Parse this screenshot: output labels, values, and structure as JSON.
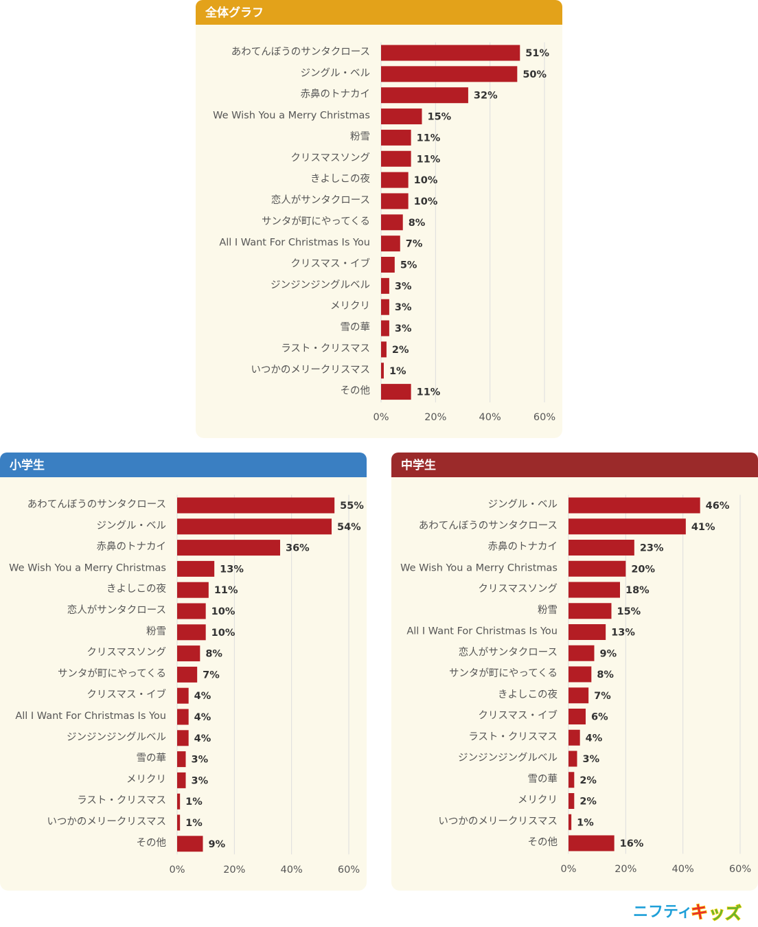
{
  "brand": {
    "text_part1": "ニフティ",
    "text_part2": "キ",
    "text_part3": "ッズ"
  },
  "colors": {
    "bar": "#b41d24",
    "header_overall": "#e3a21a",
    "header_elementary": "#3a7fc2",
    "header_middle": "#9b2a2a",
    "panel_bg": "#fcf9ea"
  },
  "chart_data": [
    {
      "type": "bar",
      "orientation": "horizontal",
      "title": "全体グラフ",
      "categories": [
        "あわてんぼうのサンタクロース",
        "ジングル・ベル",
        "赤鼻のトナカイ",
        "We Wish You a Merry Christmas",
        "粉雪",
        "クリスマスソング",
        "きよしこの夜",
        "恋人がサンタクロース",
        "サンタが町にやってくる",
        "All I Want For Christmas Is You",
        "クリスマス・イブ",
        "ジンジンジングルベル",
        "メリクリ",
        "雪の華",
        "ラスト・クリスマス",
        "いつかのメリークリスマス",
        "その他"
      ],
      "values": [
        51,
        50,
        32,
        15,
        11,
        11,
        10,
        10,
        8,
        7,
        5,
        3,
        3,
        3,
        2,
        1,
        11
      ],
      "value_labels": [
        "51%",
        "50%",
        "32%",
        "15%",
        "11%",
        "11%",
        "10%",
        "10%",
        "8%",
        "7%",
        "5%",
        "3%",
        "3%",
        "3%",
        "2%",
        "1%",
        "11%"
      ],
      "xlim": [
        0,
        60
      ],
      "ticks": [
        0,
        20,
        40,
        60
      ],
      "tick_labels": [
        "0%",
        "20%",
        "40%",
        "60%"
      ],
      "grid": true
    },
    {
      "type": "bar",
      "orientation": "horizontal",
      "title": "小学生",
      "categories": [
        "あわてんぼうのサンタクロース",
        "ジングル・ベル",
        "赤鼻のトナカイ",
        "We Wish You a Merry Christmas",
        "きよしこの夜",
        "恋人がサンタクロース",
        "粉雪",
        "クリスマスソング",
        "サンタが町にやってくる",
        "クリスマス・イブ",
        "All I Want For Christmas Is You",
        "ジンジンジングルベル",
        "雪の華",
        "メリクリ",
        "ラスト・クリスマス",
        "いつかのメリークリスマス",
        "その他"
      ],
      "values": [
        55,
        54,
        36,
        13,
        11,
        10,
        10,
        8,
        7,
        4,
        4,
        4,
        3,
        3,
        1,
        1,
        9
      ],
      "value_labels": [
        "55%",
        "54%",
        "36%",
        "13%",
        "11%",
        "10%",
        "10%",
        "8%",
        "7%",
        "4%",
        "4%",
        "4%",
        "3%",
        "3%",
        "1%",
        "1%",
        "9%"
      ],
      "xlim": [
        0,
        60
      ],
      "ticks": [
        0,
        20,
        40,
        60
      ],
      "tick_labels": [
        "0%",
        "20%",
        "40%",
        "60%"
      ],
      "grid": true
    },
    {
      "type": "bar",
      "orientation": "horizontal",
      "title": "中学生",
      "categories": [
        "ジングル・ベル",
        "あわてんぼうのサンタクロース",
        "赤鼻のトナカイ",
        "We Wish You a Merry Christmas",
        "クリスマスソング",
        "粉雪",
        "All I Want For Christmas Is You",
        "恋人がサンタクロース",
        "サンタが町にやってくる",
        "きよしこの夜",
        "クリスマス・イブ",
        "ラスト・クリスマス",
        "ジンジンジングルベル",
        "雪の華",
        "メリクリ",
        "いつかのメリークリスマス",
        "その他"
      ],
      "values": [
        46,
        41,
        23,
        20,
        18,
        15,
        13,
        9,
        8,
        7,
        6,
        4,
        3,
        2,
        2,
        1,
        16
      ],
      "value_labels": [
        "46%",
        "41%",
        "23%",
        "20%",
        "18%",
        "15%",
        "13%",
        "9%",
        "8%",
        "7%",
        "6%",
        "4%",
        "3%",
        "2%",
        "2%",
        "1%",
        "16%"
      ],
      "xlim": [
        0,
        60
      ],
      "ticks": [
        0,
        20,
        40,
        60
      ],
      "tick_labels": [
        "0%",
        "20%",
        "40%",
        "60%"
      ],
      "grid": true
    }
  ]
}
